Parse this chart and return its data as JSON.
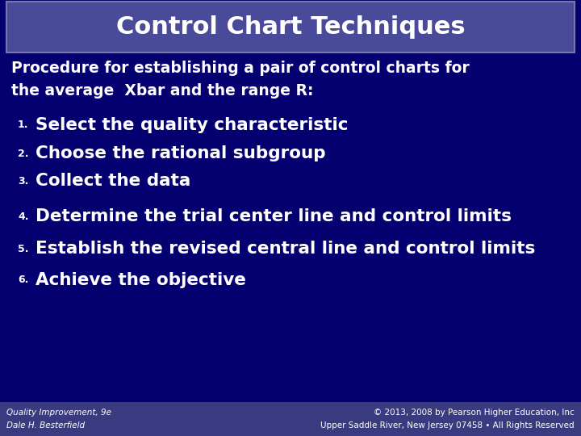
{
  "title": "Control Chart Techniques",
  "bg_color": "#050070",
  "title_box_color": "#4A4A9A",
  "title_box_edge_color": "#7777AA",
  "title_text_color": "#FFFFFF",
  "body_text_color": "#FFFFFF",
  "intro_line1": "Procedure for establishing a pair of control charts for",
  "intro_line2": "the average  Xbar and the range R:",
  "items": [
    "Select the quality characteristic",
    "Choose the rational subgroup",
    "Collect the data",
    "Determine the trial center line and control limits",
    "Establish the revised central line and control limits",
    "Achieve the objective"
  ],
  "footer_left_line1": "Quality Improvement, 9e",
  "footer_left_line2": "Dale H. Besterfield",
  "footer_right_line1": "© 2013, 2008 by Pearson Higher Education, Inc",
  "footer_right_line2": "Upper Saddle River, New Jersey 07458 • All Rights Reserved",
  "footer_text_color": "#FFFFFF",
  "footer_bg_color": "#3A3A80"
}
